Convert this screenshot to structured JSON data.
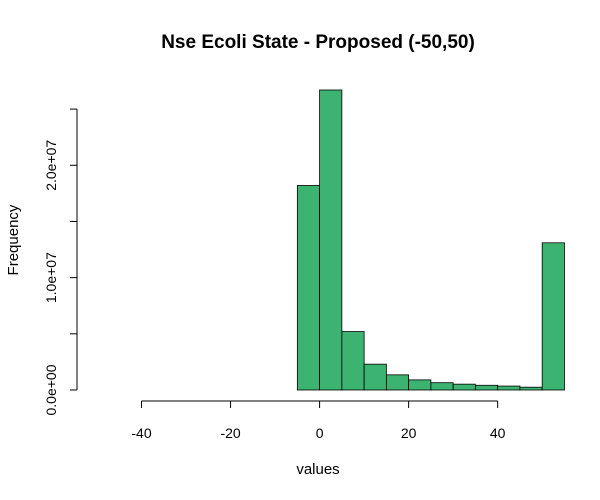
{
  "chart_data": {
    "type": "histogram",
    "title": "Nse Ecoli State - Proposed (-50,50)",
    "xlabel": "values",
    "ylabel": "Frequency",
    "xlim": [
      -50,
      54
    ],
    "ylim": [
      0,
      25000000
    ],
    "x_ticks": [
      -40,
      -20,
      0,
      20,
      40
    ],
    "x_tick_labels": [
      "-40",
      "-20",
      "0",
      "20",
      "40"
    ],
    "y_ticks": [
      0,
      5000000,
      10000000,
      15000000,
      20000000,
      25000000
    ],
    "y_tick_labels": [
      "0.0e+00",
      "",
      "1.0e+07",
      "",
      "2.0e+07",
      ""
    ],
    "bin_width": 5,
    "bin_starts": [
      -50,
      -45,
      -40,
      -35,
      -30,
      -25,
      -20,
      -15,
      -10,
      -5,
      0,
      5,
      10,
      15,
      20,
      25,
      30,
      35,
      40,
      45,
      50
    ],
    "values": [
      0,
      0,
      0,
      0,
      0,
      0,
      0,
      0,
      0,
      18200000,
      26700000,
      5200000,
      2300000,
      1350000,
      900000,
      650000,
      520000,
      420000,
      350000,
      250000,
      13100000
    ],
    "bar_color": "#3cb371",
    "grid": false
  }
}
